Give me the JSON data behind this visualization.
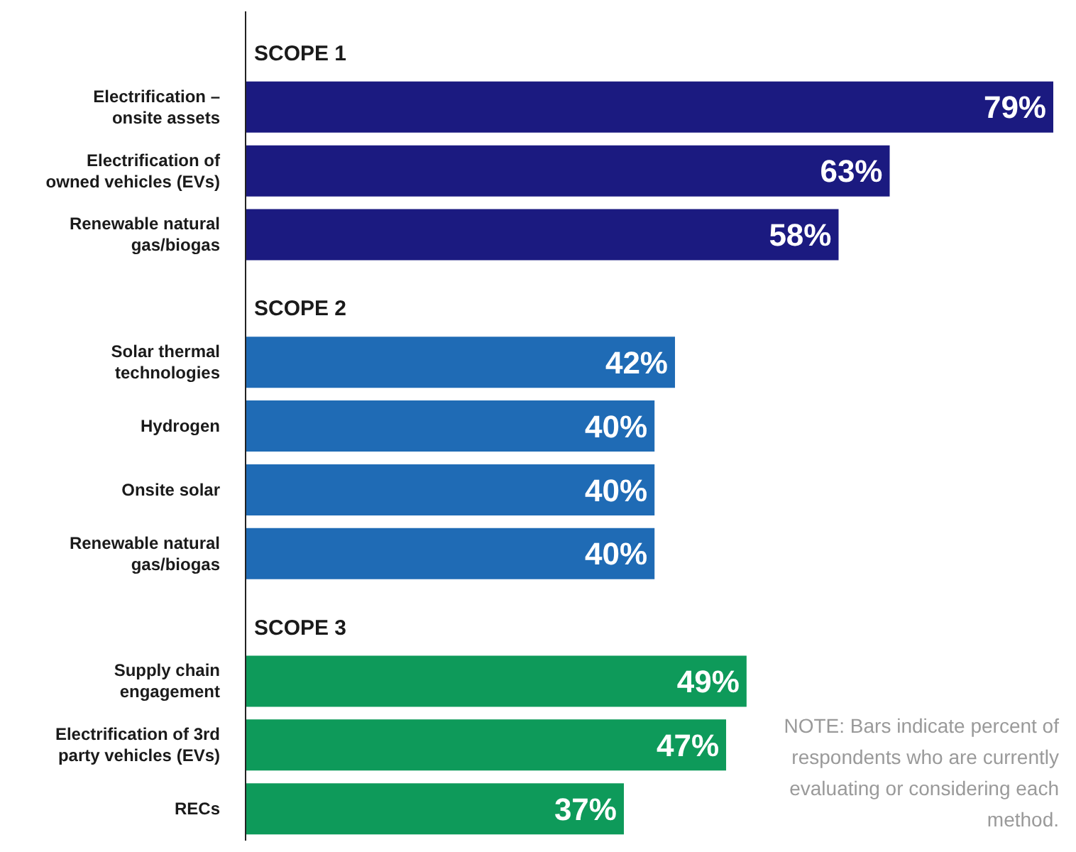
{
  "chart_data": {
    "type": "bar",
    "orientation": "horizontal",
    "categories": [
      null,
      "Electrification – onsite assets",
      "Electrification of owned vehicles (EVs)",
      "Renewable natural gas/biogas",
      null,
      "Solar thermal technologies",
      "Hydrogen",
      "Onsite solar",
      "Renewable natural gas/biogas",
      null,
      "Supply chain engagement",
      "Electrification of 3rd party vehicles (EVs)",
      "RECs"
    ],
    "values": [
      null,
      79,
      63,
      58,
      null,
      42,
      40,
      40,
      40,
      null,
      49,
      47,
      37
    ],
    "value_labels": [
      null,
      "79%",
      "63%",
      "58%",
      null,
      "42%",
      "40%",
      "40%",
      "40%",
      null,
      "49%",
      "47%",
      "37%"
    ],
    "colors": [
      null,
      "#1b1a80",
      "#1b1a80",
      "#1b1a80",
      null,
      "#1f6bb5",
      "#1f6bb5",
      "#1f6bb5",
      "#1f6bb5",
      null,
      "#0e9a5a",
      "#0e9a5a",
      "#0e9a5a"
    ],
    "annotations": [
      "SCOPE 1",
      "SCOPE 2",
      "SCOPE 3",
      "NOTE: Bars indicate percent of respondents who are currently evaluating or considering each method."
    ]
  }
}
